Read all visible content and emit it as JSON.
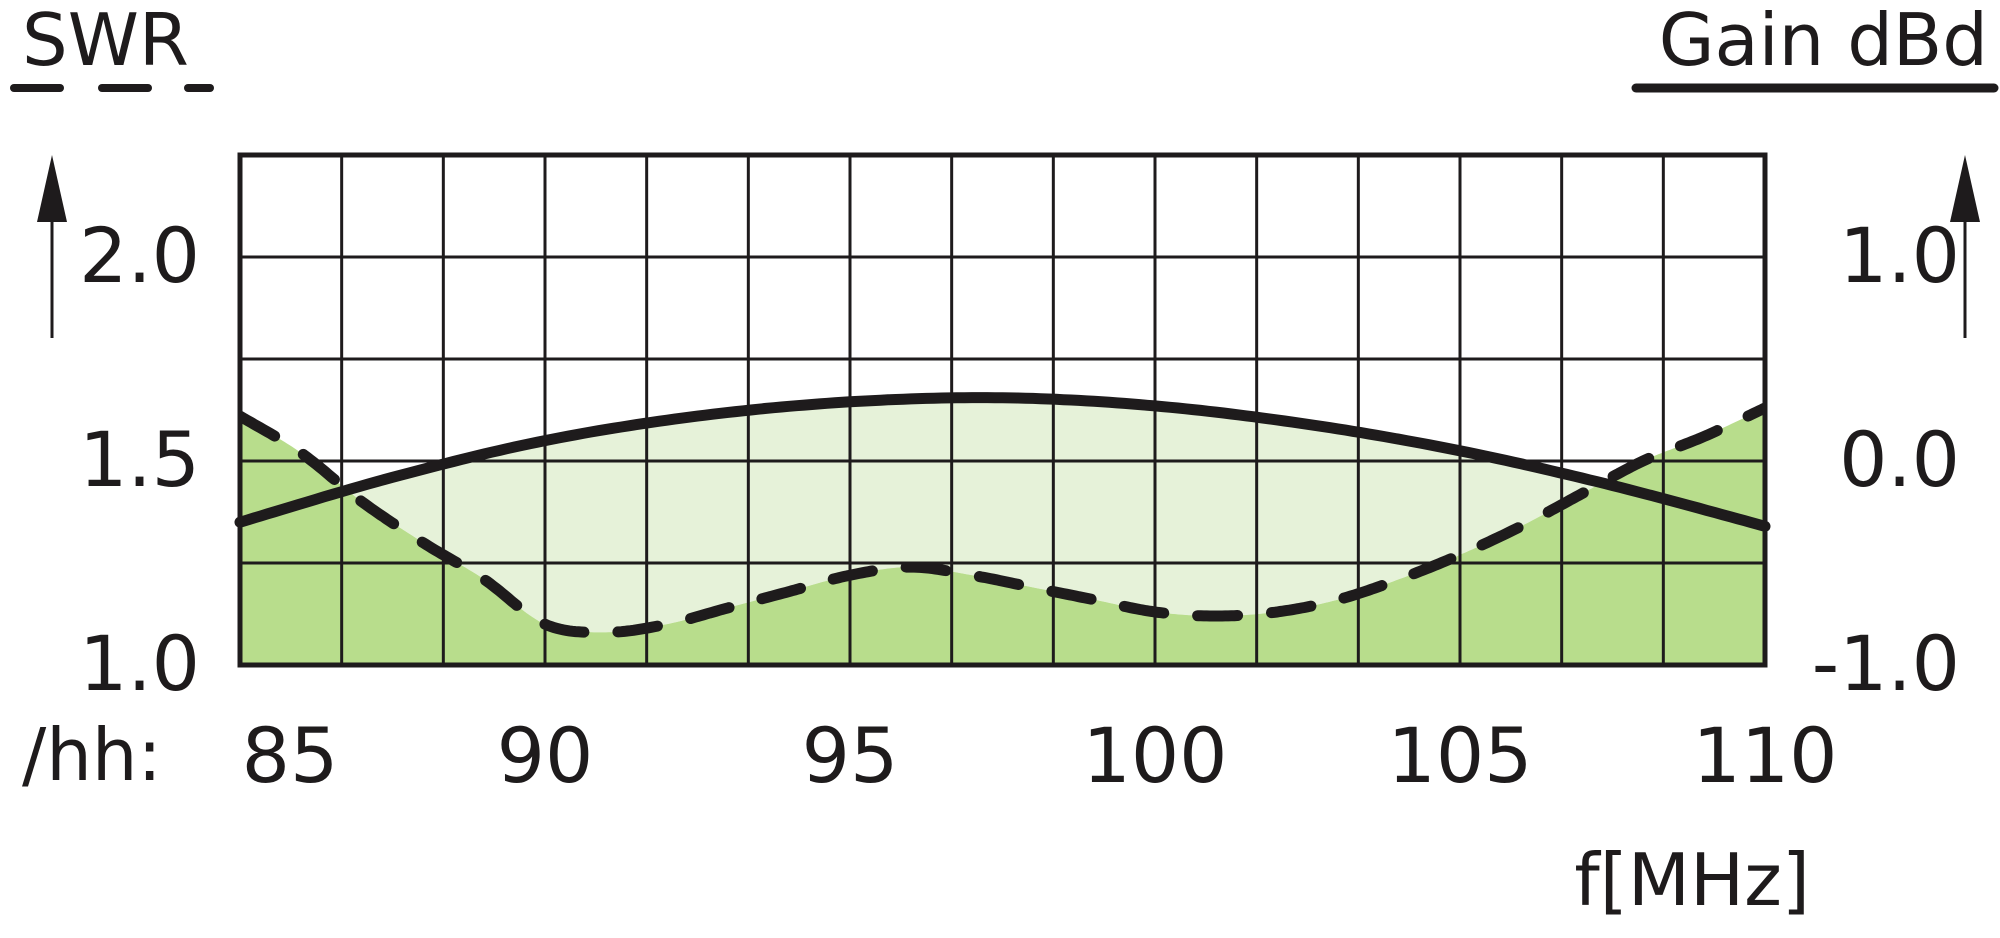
{
  "chart_data": {
    "type": "line",
    "title": "",
    "left_axis_label": "SWR",
    "right_axis_label": "Gain dBd",
    "xlabel": "f[MHz]",
    "x_prefix": "/hh:",
    "xlim": [
      85,
      110
    ],
    "x_ticks": [
      "85",
      "90",
      "95",
      "100",
      "105",
      "110"
    ],
    "left_ylim": [
      1.0,
      2.25
    ],
    "left_ticks": [
      "1.0",
      "1.5",
      "2.0"
    ],
    "right_ylim": [
      -1.0,
      1.5
    ],
    "right_ticks": [
      "-1.0",
      "0.0",
      "1.0"
    ],
    "grid": true,
    "series": [
      {
        "name": "SWR",
        "axis": "left",
        "style": "dashed",
        "x": [
          85,
          86,
          87,
          88,
          89,
          90,
          91,
          92,
          93,
          94,
          95,
          96,
          97,
          98,
          99,
          100,
          101,
          102,
          103,
          104,
          105,
          106,
          107,
          108,
          109,
          110
        ],
        "y": [
          1.61,
          1.52,
          1.4,
          1.3,
          1.21,
          1.1,
          1.08,
          1.1,
          1.14,
          1.18,
          1.22,
          1.24,
          1.22,
          1.19,
          1.16,
          1.13,
          1.12,
          1.13,
          1.16,
          1.21,
          1.27,
          1.34,
          1.42,
          1.5,
          1.56,
          1.63
        ]
      },
      {
        "name": "Gain dBd",
        "axis": "right",
        "style": "solid",
        "x": [
          85,
          87.5,
          90,
          92.5,
          95,
          97.5,
          100,
          102.5,
          105,
          107.5,
          110
        ],
        "y": [
          -0.3,
          -0.08,
          0.1,
          0.22,
          0.29,
          0.31,
          0.27,
          0.18,
          0.05,
          -0.12,
          -0.32
        ]
      }
    ],
    "colors": {
      "fill_inner": "#e6f2d9",
      "fill_outer": "#b8dd8c",
      "line": "#1e1b1c",
      "grid": "#1e1b1c"
    }
  }
}
